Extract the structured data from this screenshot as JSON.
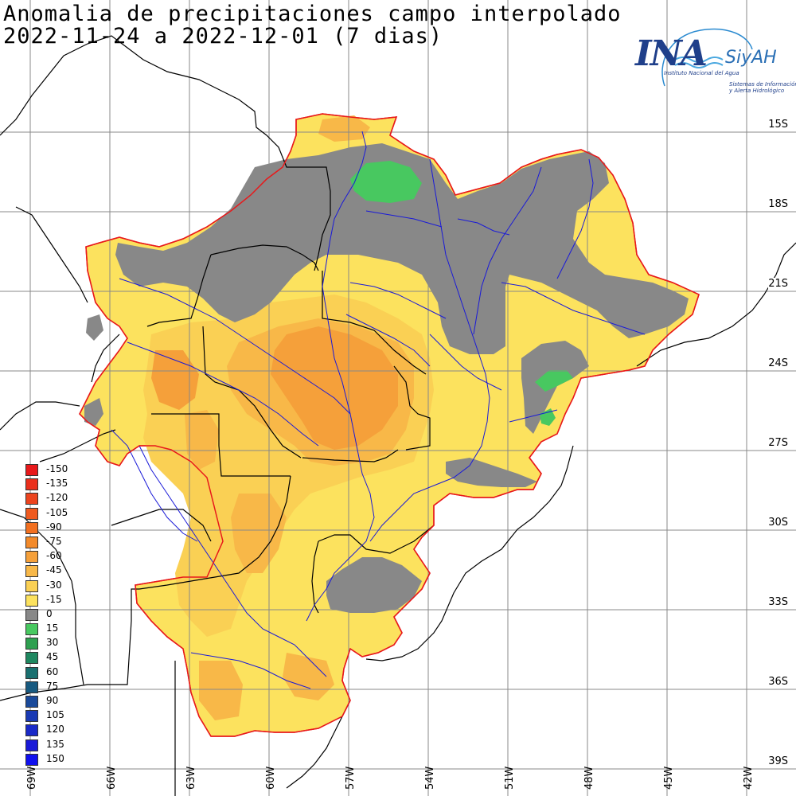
{
  "title": {
    "line1": "Anomalia de precipitaciones campo interpolado",
    "line2": "2022-11-24 a 2022-12-01 (7 dias)"
  },
  "logo": {
    "name": "INA",
    "product": "SiyAH",
    "institute": "Instituto Nacional del Agua",
    "system_line1": "Sistemas de Información",
    "system_line2": "y Alerta Hidrológico"
  },
  "latitude_labels": [
    "15S",
    "18S",
    "21S",
    "24S",
    "27S",
    "30S",
    "33S",
    "36S",
    "39S"
  ],
  "longitude_labels": [
    "69W",
    "66W",
    "63W",
    "60W",
    "57W",
    "54W",
    "51W",
    "48W",
    "45W",
    "42W"
  ],
  "legend": [
    {
      "label": "-150",
      "color": "#e8191b"
    },
    {
      "label": "-135",
      "color": "#ea2f1c"
    },
    {
      "label": "-120",
      "color": "#ec441e"
    },
    {
      "label": "-105",
      "color": "#ef5a1f"
    },
    {
      "label": "-90",
      "color": "#f27020"
    },
    {
      "label": "-75",
      "color": "#f38a2a"
    },
    {
      "label": "-60",
      "color": "#f5a03a"
    },
    {
      "label": "-45",
      "color": "#f8b848"
    },
    {
      "label": "-30",
      "color": "#fad054"
    },
    {
      "label": "-15",
      "color": "#fce25e"
    },
    {
      "label": "0",
      "color": "#888888"
    },
    {
      "label": "15",
      "color": "#48c860"
    },
    {
      "label": "30",
      "color": "#2ea050"
    },
    {
      "label": "45",
      "color": "#1f8860"
    },
    {
      "label": "60",
      "color": "#1a7070"
    },
    {
      "label": "75",
      "color": "#185a80"
    },
    {
      "label": "90",
      "color": "#1a4a9a"
    },
    {
      "label": "105",
      "color": "#1a3ab4"
    },
    {
      "label": "120",
      "color": "#1a2ac8"
    },
    {
      "label": "135",
      "color": "#1a1ad8"
    },
    {
      "label": "150",
      "color": "#1010ee"
    }
  ]
}
